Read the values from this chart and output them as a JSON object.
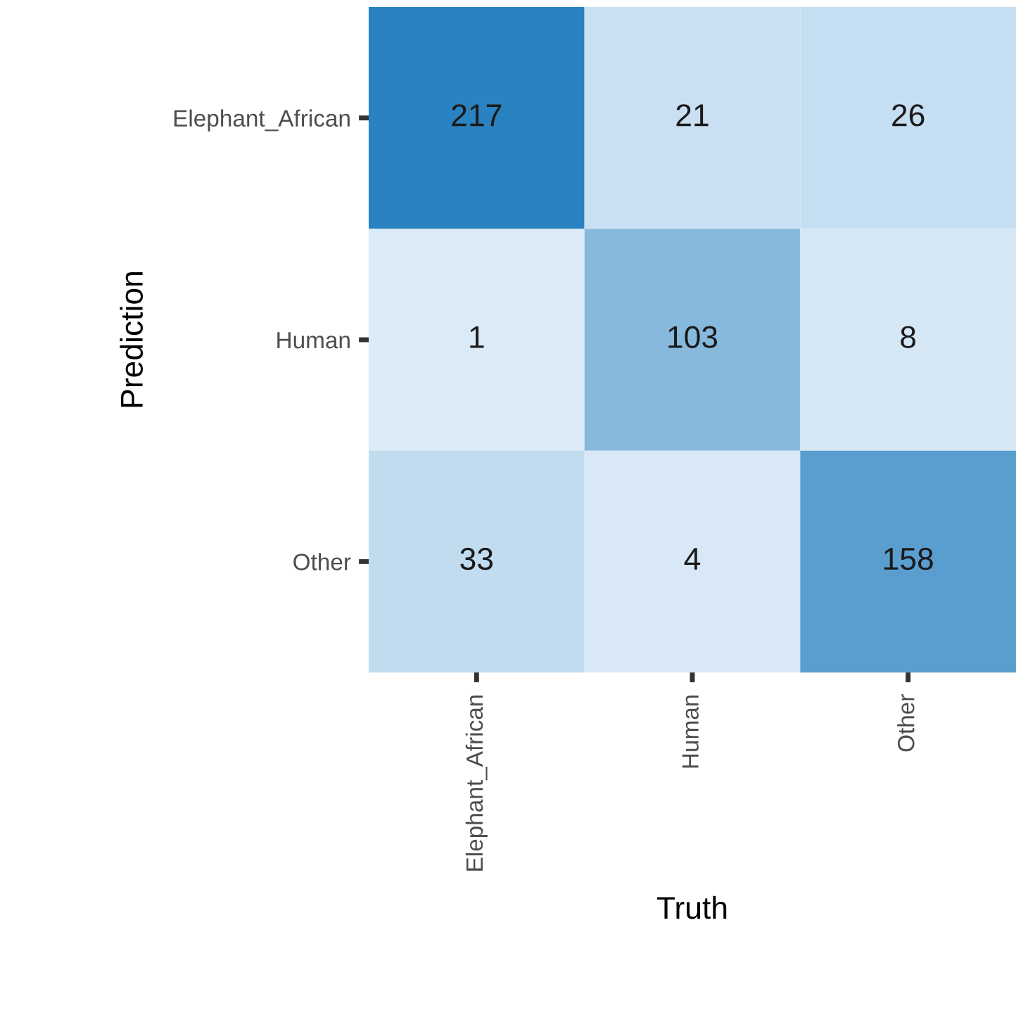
{
  "chart_data": {
    "type": "heatmap",
    "xlabel": "Truth",
    "ylabel": "Prediction",
    "categories": [
      "Elephant_African",
      "Human",
      "Other"
    ],
    "y_categories": [
      "Elephant_African",
      "Human",
      "Other"
    ],
    "cells": [
      [
        217,
        21,
        26
      ],
      [
        1,
        103,
        8
      ],
      [
        33,
        4,
        158
      ]
    ],
    "data_labels": true,
    "grid": false
  }
}
